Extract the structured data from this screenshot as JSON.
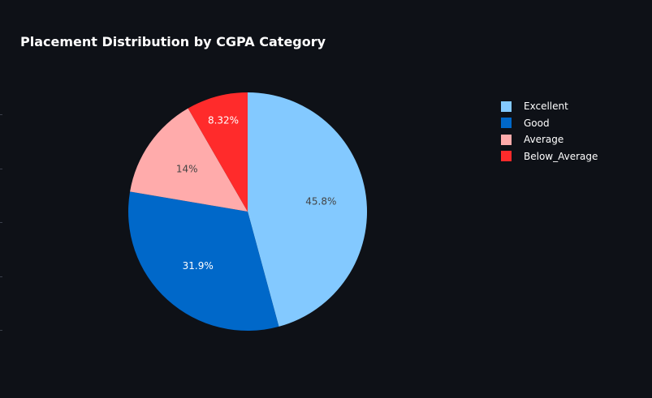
{
  "chart_data": {
    "type": "pie",
    "title": "Placement Distribution by CGPA Category",
    "categories": [
      "Excellent",
      "Good",
      "Average",
      "Below_Average"
    ],
    "values": [
      45.8,
      31.9,
      14.0,
      8.32
    ],
    "labels": [
      "45.8%",
      "31.9%",
      "14%",
      "8.32%"
    ],
    "colors": [
      "#83c9ff",
      "#0068c9",
      "#ffabab",
      "#ff2b2b"
    ],
    "label_colors": [
      "#444444",
      "#ffffff",
      "#444444",
      "#ffffff"
    ],
    "legend_position": "top-right",
    "direction": "clockwise",
    "start": "top"
  }
}
